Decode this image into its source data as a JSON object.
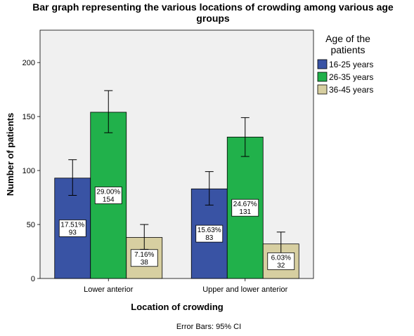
{
  "chart_data": {
    "type": "bar",
    "title_lines": [
      "Bar graph representing the various locations of crowding among various age",
      "groups"
    ],
    "xlabel": "Location of crowding",
    "ylabel": "Number of patients",
    "categories": [
      "Lower anterior",
      "Upper and lower anterior"
    ],
    "ylim": [
      0,
      230
    ],
    "yticks": [
      0,
      50,
      100,
      150,
      200
    ],
    "legend_title_lines": [
      "Age of the",
      "patients"
    ],
    "legend_position": "right",
    "grid": false,
    "series": [
      {
        "name": "16-25 years",
        "color": "#3953a4",
        "values": [
          93,
          83
        ],
        "ci_low": [
          77,
          68
        ],
        "ci_high": [
          110,
          99
        ],
        "percent_labels": [
          "17.51%",
          "15.63%"
        ]
      },
      {
        "name": "26-35 years",
        "color": "#21b14b",
        "values": [
          154,
          131
        ],
        "ci_low": [
          135,
          113
        ],
        "ci_high": [
          174,
          149
        ],
        "percent_labels": [
          "29.00%",
          "24.67%"
        ]
      },
      {
        "name": "36-45 years",
        "color": "#d7cfa1",
        "values": [
          38,
          32
        ],
        "ci_low": [
          27,
          23
        ],
        "ci_high": [
          50,
          43
        ],
        "percent_labels": [
          "7.16%",
          "6.03%"
        ]
      }
    ],
    "footnote": "Error Bars: 95% CI"
  }
}
